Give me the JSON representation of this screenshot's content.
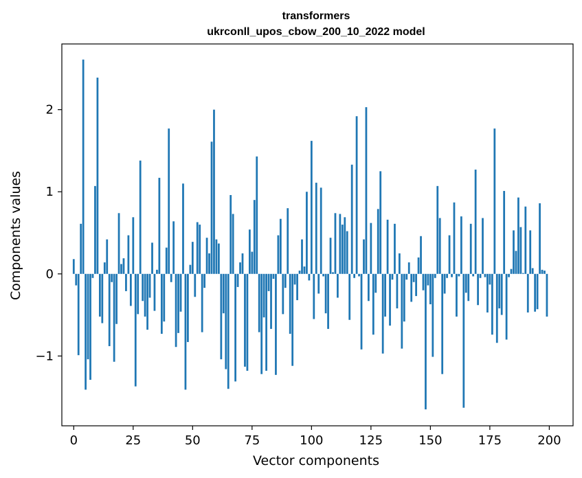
{
  "chart_data": {
    "type": "bar",
    "title_line1": "transformers",
    "title_line2": "ukrconll_upos_cbow_200_10_2022 model",
    "xlabel": "Vector components",
    "ylabel": "Components values",
    "xlim": [
      -5,
      210
    ],
    "ylim": [
      -1.85,
      2.8
    ],
    "x_ticks": [
      0,
      25,
      50,
      75,
      100,
      125,
      150,
      175,
      200
    ],
    "x_tick_labels": [
      "0",
      "25",
      "50",
      "75",
      "100",
      "125",
      "150",
      "175",
      "200"
    ],
    "y_ticks": [
      -1,
      0,
      1,
      2
    ],
    "y_tick_labels": [
      "−1",
      "0",
      "1",
      "2"
    ],
    "bar_color": "#1f77b4",
    "x": [
      0,
      1,
      2,
      3,
      4,
      5,
      6,
      7,
      8,
      9,
      10,
      11,
      12,
      13,
      14,
      15,
      16,
      17,
      18,
      19,
      20,
      21,
      22,
      23,
      24,
      25,
      26,
      27,
      28,
      29,
      30,
      31,
      32,
      33,
      34,
      35,
      36,
      37,
      38,
      39,
      40,
      41,
      42,
      43,
      44,
      45,
      46,
      47,
      48,
      49,
      50,
      51,
      52,
      53,
      54,
      55,
      56,
      57,
      58,
      59,
      60,
      61,
      62,
      63,
      64,
      65,
      66,
      67,
      68,
      69,
      70,
      71,
      72,
      73,
      74,
      75,
      76,
      77,
      78,
      79,
      80,
      81,
      82,
      83,
      84,
      85,
      86,
      87,
      88,
      89,
      90,
      91,
      92,
      93,
      94,
      95,
      96,
      97,
      98,
      99,
      100,
      101,
      102,
      103,
      104,
      105,
      106,
      107,
      108,
      109,
      110,
      111,
      112,
      113,
      114,
      115,
      116,
      117,
      118,
      119,
      120,
      121,
      122,
      123,
      124,
      125,
      126,
      127,
      128,
      129,
      130,
      131,
      132,
      133,
      134,
      135,
      136,
      137,
      138,
      139,
      140,
      141,
      142,
      143,
      144,
      145,
      146,
      147,
      148,
      149,
      150,
      151,
      152,
      153,
      154,
      155,
      156,
      157,
      158,
      159,
      160,
      161,
      162,
      163,
      164,
      165,
      166,
      167,
      168,
      169,
      170,
      171,
      172,
      173,
      174,
      175,
      176,
      177,
      178,
      179,
      180,
      181,
      182,
      183,
      184,
      185,
      186,
      187,
      188,
      189,
      190,
      191,
      192,
      193,
      194,
      195,
      196,
      197,
      198,
      199
    ],
    "values": [
      0.18,
      -0.14,
      -0.99,
      0.61,
      2.61,
      -1.41,
      -1.04,
      -1.29,
      -0.05,
      1.07,
      2.39,
      -0.52,
      -0.6,
      0.14,
      0.42,
      -0.88,
      -0.1,
      -1.07,
      -0.61,
      0.74,
      0.12,
      0.19,
      -0.21,
      0.47,
      -0.39,
      0.69,
      -1.37,
      -0.49,
      1.38,
      -0.33,
      -0.52,
      -0.68,
      -0.29,
      0.38,
      -0.45,
      0.05,
      1.17,
      -0.73,
      -0.58,
      0.32,
      1.77,
      -0.1,
      0.64,
      -0.89,
      -0.72,
      -0.46,
      1.1,
      -1.41,
      -0.83,
      0.11,
      0.39,
      -0.28,
      0.63,
      0.6,
      -0.71,
      -0.17,
      0.44,
      0.25,
      1.61,
      2.0,
      0.42,
      0.37,
      -1.04,
      -0.48,
      -1.16,
      -1.4,
      0.96,
      0.73,
      -1.31,
      -0.16,
      0.14,
      0.25,
      -1.13,
      -1.18,
      0.54,
      0.27,
      0.9,
      1.43,
      -0.71,
      -1.22,
      -0.53,
      -1.18,
      -0.21,
      -0.67,
      -0.06,
      -1.23,
      0.47,
      0.67,
      -0.49,
      -0.17,
      0.8,
      -0.73,
      -1.12,
      -0.13,
      -0.32,
      0.04,
      0.42,
      0.09,
      1.0,
      -0.08,
      1.62,
      -0.55,
      1.11,
      -0.24,
      1.05,
      -0.03,
      -0.48,
      -0.67,
      0.44,
      0.02,
      0.74,
      -0.29,
      0.73,
      0.6,
      0.69,
      0.52,
      -0.56,
      1.33,
      -0.05,
      1.92,
      -0.03,
      -0.92,
      0.42,
      2.03,
      -0.33,
      0.62,
      -0.74,
      -0.23,
      0.79,
      1.25,
      -0.97,
      -0.52,
      0.66,
      -0.63,
      -0.07,
      0.61,
      -0.42,
      0.25,
      -0.91,
      -0.58,
      -0.07,
      0.14,
      -0.34,
      -0.1,
      -0.27,
      0.2,
      0.46,
      -0.2,
      -1.65,
      -0.14,
      -0.37,
      -1.01,
      -0.05,
      1.07,
      0.68,
      -1.22,
      -0.24,
      -0.05,
      0.47,
      -0.04,
      0.87,
      -0.52,
      -0.03,
      0.7,
      -1.63,
      -0.23,
      -0.33,
      0.61,
      -0.03,
      1.27,
      -0.38,
      -0.05,
      0.68,
      -0.04,
      -0.47,
      -0.13,
      -0.74,
      1.77,
      -0.84,
      -0.42,
      -0.5,
      1.01,
      -0.8,
      -0.04,
      0.06,
      0.53,
      0.28,
      0.93,
      0.57,
      0.01,
      0.82,
      -0.47,
      0.53,
      0.07,
      -0.46,
      -0.43,
      0.86,
      0.05,
      0.04,
      -0.52
    ]
  }
}
